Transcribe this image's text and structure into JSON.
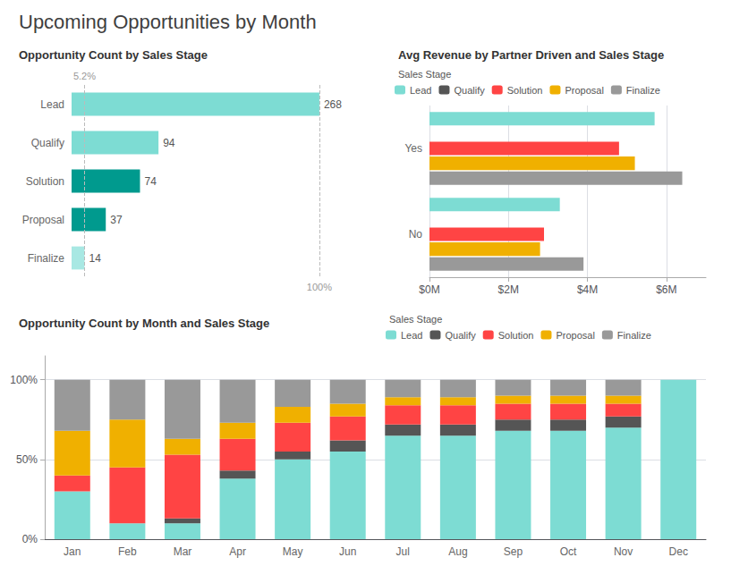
{
  "title": "Upcoming Opportunities by Month",
  "chart_data": [
    {
      "type": "bar",
      "orientation": "horizontal",
      "title": "Opportunity Count by Sales Stage",
      "categories": [
        "Lead",
        "Qualify",
        "Solution",
        "Proposal",
        "Finalize"
      ],
      "values": [
        268,
        94,
        74,
        37,
        14
      ],
      "colors": [
        "#7ddcd3",
        "#7ddcd3",
        "#009a8e",
        "#009a8e",
        "#a8e8e3"
      ],
      "data_labels": true,
      "tick_labels": "y",
      "annotations": [
        {
          "text": "100%",
          "x": 268
        },
        {
          "text": "5.2%",
          "x": 14
        }
      ]
    },
    {
      "type": "bar",
      "orientation": "horizontal",
      "title": "Avg Revenue by Partner Driven and Sales Stage",
      "categories": [
        "No",
        "Yes"
      ],
      "series": [
        {
          "name": "Lead",
          "color": "#7ddcd3",
          "values": [
            3300000,
            5700000
          ]
        },
        {
          "name": "Qualify",
          "color": "#555555",
          "values": [
            0,
            0
          ]
        },
        {
          "name": "Solution",
          "color": "#ff4444",
          "values": [
            2900000,
            4800000
          ]
        },
        {
          "name": "Proposal",
          "color": "#f0b000",
          "values": [
            2800000,
            5200000
          ]
        },
        {
          "name": "Finalize",
          "color": "#999999",
          "values": [
            3900000,
            6400000
          ]
        }
      ],
      "xlim": [
        0,
        7000000
      ],
      "xticks": [
        {
          "value": 0,
          "label": "$0M"
        },
        {
          "value": 2000000,
          "label": "$2M"
        },
        {
          "value": 4000000,
          "label": "$4M"
        },
        {
          "value": 6000000,
          "label": "$6M"
        }
      ],
      "grid": true,
      "legend": "top",
      "legend_title": "Sales Stage"
    },
    {
      "type": "bar",
      "stacked": true,
      "title": "Opportunity Count by Month and Sales Stage",
      "categories": [
        "Jan",
        "Feb",
        "Mar",
        "Apr",
        "May",
        "Jun",
        "Jul",
        "Aug",
        "Sep",
        "Oct",
        "Nov",
        "Dec"
      ],
      "series": [
        {
          "name": "Lead",
          "color": "#7ddcd3",
          "values": [
            0.3,
            0.1,
            0.1,
            0.38,
            0.5,
            0.55,
            0.65,
            0.65,
            0.68,
            0.68,
            0.7,
            1.0
          ]
        },
        {
          "name": "Qualify",
          "color": "#555555",
          "values": [
            0.0,
            0.0,
            0.03,
            0.05,
            0.05,
            0.07,
            0.07,
            0.07,
            0.07,
            0.07,
            0.07,
            0.0
          ]
        },
        {
          "name": "Solution",
          "color": "#ff4444",
          "values": [
            0.1,
            0.35,
            0.4,
            0.2,
            0.18,
            0.15,
            0.12,
            0.12,
            0.1,
            0.1,
            0.08,
            0.0
          ]
        },
        {
          "name": "Proposal",
          "color": "#f0b000",
          "values": [
            0.28,
            0.3,
            0.1,
            0.1,
            0.1,
            0.08,
            0.05,
            0.05,
            0.05,
            0.05,
            0.05,
            0.0
          ]
        },
        {
          "name": "Finalize",
          "color": "#999999",
          "values": [
            0.32,
            0.25,
            0.37,
            0.27,
            0.17,
            0.15,
            0.11,
            0.11,
            0.1,
            0.1,
            0.1,
            0.0
          ]
        }
      ],
      "ylim": [
        0,
        1.15
      ],
      "yticks": [
        {
          "value": 0,
          "label": "0%"
        },
        {
          "value": 0.5,
          "label": "50%"
        },
        {
          "value": 1.0,
          "label": "100%"
        }
      ],
      "grid": true,
      "legend": "top",
      "legend_title": "Sales Stage"
    }
  ]
}
